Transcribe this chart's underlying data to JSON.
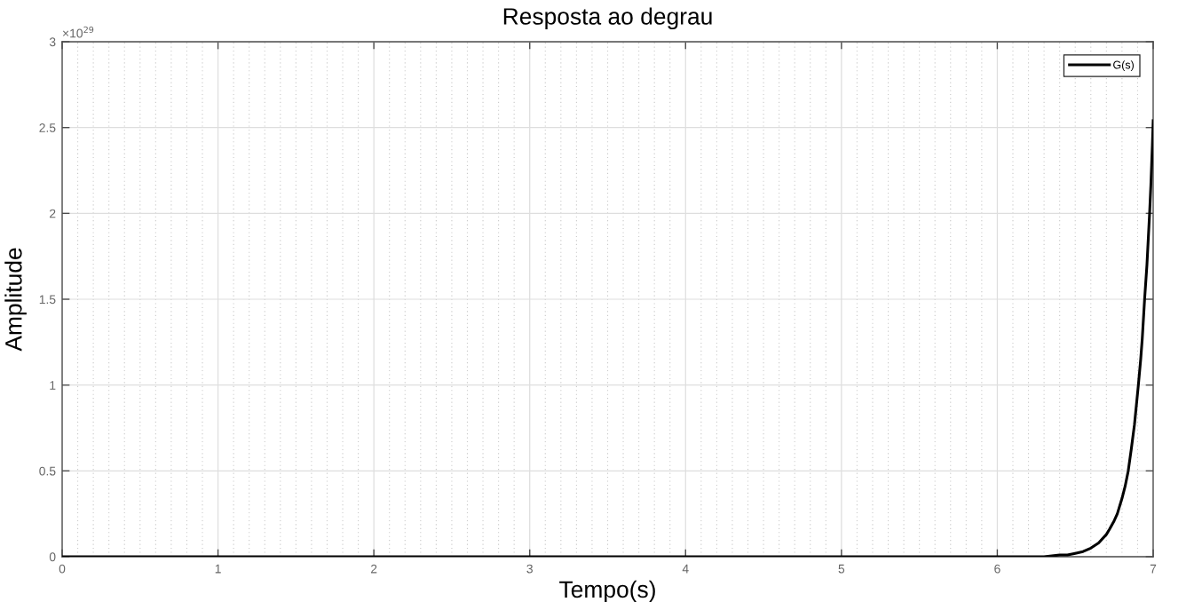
{
  "chart_data": {
    "type": "line",
    "title": "Resposta ao degrau",
    "xlabel": "Tempo(s)",
    "ylabel": "Amplitude",
    "annotations": [
      "×10$^{29}$"
    ],
    "x": [
      0,
      1,
      2,
      3,
      4,
      5,
      6,
      6.3,
      6.4,
      6.45,
      6.5,
      6.55,
      6.6,
      6.65,
      6.7,
      6.72,
      6.75,
      6.77,
      6.8,
      6.82,
      6.84,
      6.86,
      6.88,
      6.905,
      6.92,
      6.93,
      6.945,
      6.96,
      6.977,
      6.985,
      6.99,
      6.995,
      7.0
    ],
    "series": [
      {
        "name": "G(s)",
        "color": "#000000",
        "values": [
          0,
          0,
          0,
          0,
          0,
          0,
          0,
          0,
          0.01,
          0.01,
          0.02,
          0.03,
          0.05,
          0.08,
          0.13,
          0.16,
          0.21,
          0.25,
          0.34,
          0.41,
          0.5,
          0.63,
          0.77,
          1.0,
          1.15,
          1.27,
          1.5,
          1.7,
          2.0,
          2.16,
          2.28,
          2.4,
          2.54
        ]
      }
    ],
    "xlim": [
      0,
      7
    ],
    "ylim": [
      0,
      3
    ],
    "xticks": [
      0,
      1,
      2,
      3,
      4,
      5,
      6,
      7
    ],
    "yticks": [
      0,
      0.5,
      1,
      1.5,
      2,
      2.5,
      3
    ],
    "grid": true,
    "legend": "top right"
  }
}
